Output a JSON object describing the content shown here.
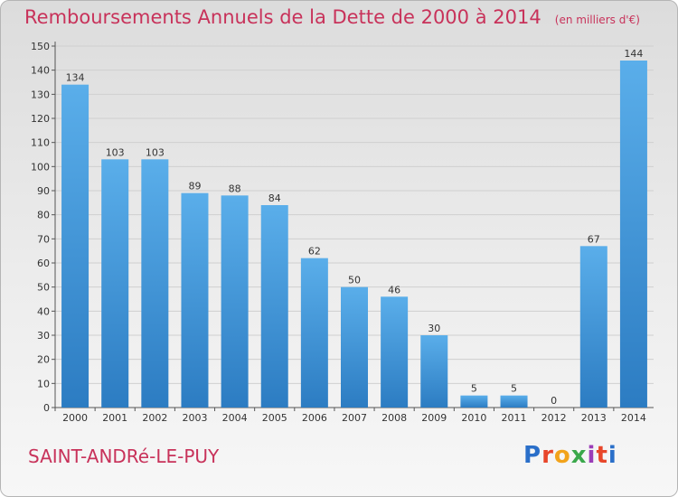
{
  "title": "Remboursements Annuels de la Dette de 2000 à 2014",
  "unit": "(en milliers d'€)",
  "town": "SAINT-ANDRé-LE-PUY",
  "logo": "Proxiti",
  "logo_colors": [
    "#2a6fc9",
    "#e8462a",
    "#f2a31b",
    "#3aa84b",
    "#9b3db8",
    "#e8462a",
    "#2a6fc9"
  ],
  "colors": {
    "bar": "#4ea3e6",
    "bar_dark": "#2c7cc2",
    "title": "#c8325a",
    "grid": "#cfcfcf"
  },
  "chart_data": {
    "type": "bar",
    "categories": [
      "2000",
      "2001",
      "2002",
      "2003",
      "2004",
      "2005",
      "2006",
      "2007",
      "2008",
      "2009",
      "2010",
      "2011",
      "2012",
      "2013",
      "2014"
    ],
    "values": [
      134,
      103,
      103,
      89,
      88,
      84,
      62,
      50,
      46,
      30,
      5,
      5,
      0,
      67,
      144
    ],
    "ylim": [
      0,
      150
    ],
    "yticks": [
      0,
      10,
      20,
      30,
      40,
      50,
      60,
      70,
      80,
      90,
      100,
      110,
      120,
      130,
      140,
      150
    ],
    "grid": true,
    "xlabel": "",
    "ylabel": ""
  }
}
